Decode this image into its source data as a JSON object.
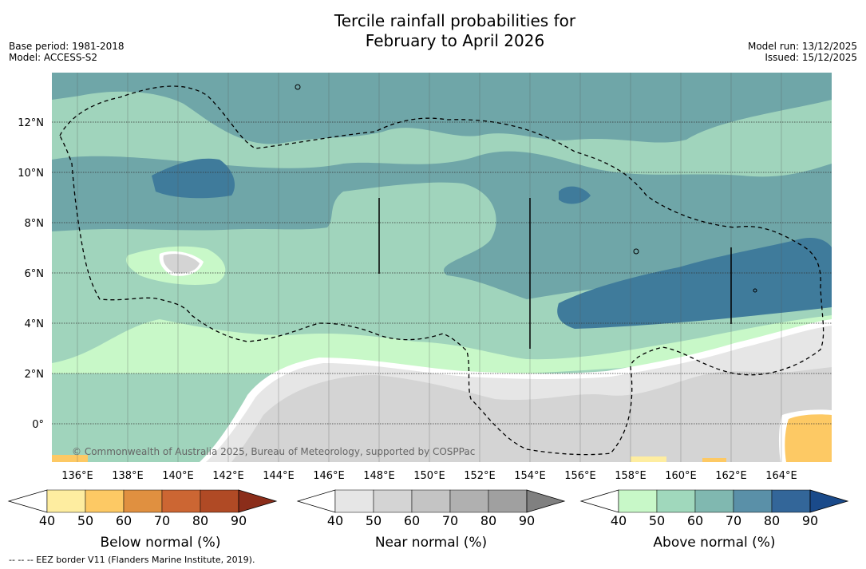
{
  "title_line1": "Tercile rainfall probabilities for",
  "title_line2": "February to April 2026",
  "meta": {
    "base_period": "Base period: 1981-2018",
    "model": "Model: ACCESS-S2",
    "model_run": "Model run: 13/12/2025",
    "issued": "Issued: 15/12/2025"
  },
  "map": {
    "lon_labels": [
      "136°E",
      "138°E",
      "140°E",
      "142°E",
      "144°E",
      "146°E",
      "148°E",
      "150°E",
      "152°E",
      "154°E",
      "156°E",
      "158°E",
      "160°E",
      "162°E",
      "164°E"
    ],
    "lat_labels": [
      "12°N",
      "10°N",
      "8°N",
      "6°N",
      "4°N",
      "2°N",
      "0°"
    ],
    "copyright": "© Commonwealth of Australia 2025, Bureau of Meteorology, supported by COSPPac"
  },
  "colorbars": [
    {
      "name": "below",
      "title": "Below normal (%)",
      "ticks": [
        "40",
        "50",
        "60",
        "70",
        "80",
        "90"
      ],
      "colors": [
        "#ffffff",
        "#feeda0",
        "#fdc964",
        "#e09040",
        "#cc6633",
        "#b04a25",
        "#8b2d1a"
      ]
    },
    {
      "name": "near",
      "title": "Near normal (%)",
      "ticks": [
        "40",
        "50",
        "60",
        "70",
        "80",
        "90"
      ],
      "colors": [
        "#ffffff",
        "#e6e6e6",
        "#d4d4d4",
        "#c4c4c4",
        "#b0b0b0",
        "#a0a0a0",
        "#808080"
      ]
    },
    {
      "name": "above",
      "title": "Above normal (%)",
      "ticks": [
        "40",
        "50",
        "60",
        "70",
        "80",
        "90"
      ],
      "colors": [
        "#ffffff",
        "#c8f8c8",
        "#a0d8bc",
        "#80b8b0",
        "#5a90a8",
        "#336699",
        "#1a4a8a"
      ]
    }
  ],
  "footnote": "--  --  -- EEZ border V11 (Flanders Marine Institute, 2019)."
}
